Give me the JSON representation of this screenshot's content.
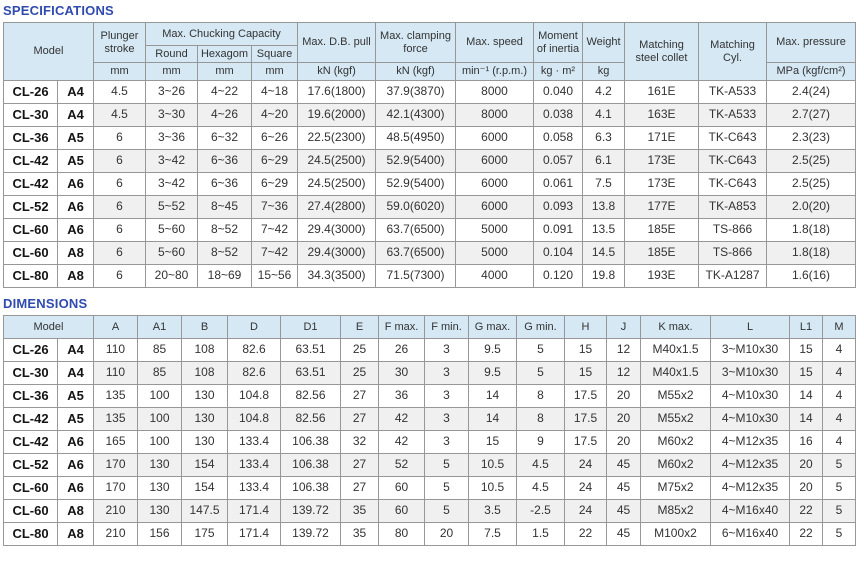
{
  "titles": {
    "specifications": "SPECIFICATIONS",
    "dimensions": "DIMENSIONS"
  },
  "colors": {
    "title_blue": "#2f4bad",
    "header_bg": "#d5e8f4",
    "border_gray": "#979797",
    "stripe_gray": "#f0f0f0"
  },
  "spec_table": {
    "header": {
      "model": "Model",
      "plunger_stroke": "Plunger stroke",
      "chucking": "Max. Chucking Capacity",
      "round": "Round",
      "hexagom": "Hexagom",
      "square": "Square",
      "db_pull": "Max. D.B. pull",
      "clamping": "Max. clamping force",
      "speed": "Max. speed",
      "inertia": "Moment of inertia",
      "weight": "Weight",
      "collet": "Matching steel collet",
      "cyl": "Matching Cyl.",
      "pressure": "Max. pressure"
    },
    "units": [
      "mm",
      "mm",
      "mm",
      "mm",
      "kN (kgf)",
      "kN (kgf)",
      "min⁻¹ (r.p.m.)",
      "kg · m²",
      "kg",
      "MPa (kgf/cm²)"
    ],
    "rows": [
      [
        "CL-26",
        "A4",
        "4.5",
        "3~26",
        "4~22",
        "4~18",
        "17.6(1800)",
        "37.9(3870)",
        "8000",
        "0.040",
        "4.2",
        "161E",
        "TK-A533",
        "2.4(24)"
      ],
      [
        "CL-30",
        "A4",
        "4.5",
        "3~30",
        "4~26",
        "4~20",
        "19.6(2000)",
        "42.1(4300)",
        "8000",
        "0.038",
        "4.1",
        "163E",
        "TK-A533",
        "2.7(27)"
      ],
      [
        "CL-36",
        "A5",
        "6",
        "3~36",
        "6~32",
        "6~26",
        "22.5(2300)",
        "48.5(4950)",
        "6000",
        "0.058",
        "6.3",
        "171E",
        "TK-C643",
        "2.3(23)"
      ],
      [
        "CL-42",
        "A5",
        "6",
        "3~42",
        "6~36",
        "6~29",
        "24.5(2500)",
        "52.9(5400)",
        "6000",
        "0.057",
        "6.1",
        "173E",
        "TK-C643",
        "2.5(25)"
      ],
      [
        "CL-42",
        "A6",
        "6",
        "3~42",
        "6~36",
        "6~29",
        "24.5(2500)",
        "52.9(5400)",
        "6000",
        "0.061",
        "7.5",
        "173E",
        "TK-C643",
        "2.5(25)"
      ],
      [
        "CL-52",
        "A6",
        "6",
        "5~52",
        "8~45",
        "7~36",
        "27.4(2800)",
        "59.0(6020)",
        "6000",
        "0.093",
        "13.8",
        "177E",
        "TK-A853",
        "2.0(20)"
      ],
      [
        "CL-60",
        "A6",
        "6",
        "5~60",
        "8~52",
        "7~42",
        "29.4(3000)",
        "63.7(6500)",
        "5000",
        "0.091",
        "13.5",
        "185E",
        "TS-866",
        "1.8(18)"
      ],
      [
        "CL-60",
        "A8",
        "6",
        "5~60",
        "8~52",
        "7~42",
        "29.4(3000)",
        "63.7(6500)",
        "5000",
        "0.104",
        "14.5",
        "185E",
        "TS-866",
        "1.8(18)"
      ],
      [
        "CL-80",
        "A8",
        "6",
        "20~80",
        "18~69",
        "15~56",
        "34.3(3500)",
        "71.5(7300)",
        "4000",
        "0.120",
        "19.8",
        "193E",
        "TK-A1287",
        "1.6(16)"
      ]
    ]
  },
  "dim_table": {
    "headers": [
      "Model",
      "A",
      "A1",
      "B",
      "D",
      "D1",
      "E",
      "F max.",
      "F min.",
      "G max.",
      "G min.",
      "H",
      "J",
      "K max.",
      "L",
      "L1",
      "M"
    ],
    "rows": [
      [
        "CL-26",
        "A4",
        "110",
        "85",
        "108",
        "82.6",
        "63.51",
        "25",
        "26",
        "3",
        "9.5",
        "5",
        "15",
        "12",
        "M40x1.5",
        "3~M10x30",
        "15",
        "4"
      ],
      [
        "CL-30",
        "A4",
        "110",
        "85",
        "108",
        "82.6",
        "63.51",
        "25",
        "30",
        "3",
        "9.5",
        "5",
        "15",
        "12",
        "M40x1.5",
        "3~M10x30",
        "15",
        "4"
      ],
      [
        "CL-36",
        "A5",
        "135",
        "100",
        "130",
        "104.8",
        "82.56",
        "27",
        "36",
        "3",
        "14",
        "8",
        "17.5",
        "20",
        "M55x2",
        "4~M10x30",
        "14",
        "4"
      ],
      [
        "CL-42",
        "A5",
        "135",
        "100",
        "130",
        "104.8",
        "82.56",
        "27",
        "42",
        "3",
        "14",
        "8",
        "17.5",
        "20",
        "M55x2",
        "4~M10x30",
        "14",
        "4"
      ],
      [
        "CL-42",
        "A6",
        "165",
        "100",
        "130",
        "133.4",
        "106.38",
        "32",
        "42",
        "3",
        "15",
        "9",
        "17.5",
        "20",
        "M60x2",
        "4~M12x35",
        "16",
        "4"
      ],
      [
        "CL-52",
        "A6",
        "170",
        "130",
        "154",
        "133.4",
        "106.38",
        "27",
        "52",
        "5",
        "10.5",
        "4.5",
        "24",
        "45",
        "M60x2",
        "4~M12x35",
        "20",
        "5"
      ],
      [
        "CL-60",
        "A6",
        "170",
        "130",
        "154",
        "133.4",
        "106.38",
        "27",
        "60",
        "5",
        "10.5",
        "4.5",
        "24",
        "45",
        "M75x2",
        "4~M12x35",
        "20",
        "5"
      ],
      [
        "CL-60",
        "A8",
        "210",
        "130",
        "147.5",
        "171.4",
        "139.72",
        "35",
        "60",
        "5",
        "3.5",
        "-2.5",
        "24",
        "45",
        "M85x2",
        "4~M16x40",
        "22",
        "5"
      ],
      [
        "CL-80",
        "A8",
        "210",
        "156",
        "175",
        "171.4",
        "139.72",
        "35",
        "80",
        "20",
        "7.5",
        "1.5",
        "22",
        "45",
        "M100x2",
        "6~M16x40",
        "22",
        "5"
      ]
    ]
  }
}
